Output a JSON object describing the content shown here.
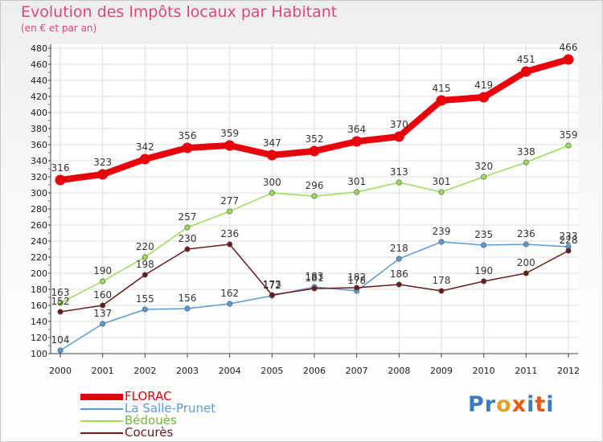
{
  "title": "Evolution des Impôts locaux par Habitant",
  "subtitle": "(en € et par an)",
  "logo_text": "Proxiti",
  "chart_data": {
    "type": "line",
    "title": "Evolution des Impôts locaux par Habitant",
    "subtitle": "(en € et par an)",
    "xlabel": "",
    "ylabel": "",
    "x": [
      "2000",
      "2001",
      "2002",
      "2003",
      "2004",
      "2005",
      "2006",
      "2007",
      "2008",
      "2009",
      "2010",
      "2011",
      "2012"
    ],
    "ylim": [
      100,
      480
    ],
    "yticks": [
      100,
      120,
      140,
      160,
      180,
      200,
      220,
      240,
      260,
      280,
      300,
      320,
      340,
      360,
      380,
      400,
      420,
      440,
      460,
      480
    ],
    "grid": true,
    "legend_position": "bottom-left",
    "series": [
      {
        "name": "FLORAC",
        "color": "#e8000b",
        "values": [
          316,
          323,
          342,
          356,
          359,
          347,
          352,
          364,
          370,
          415,
          419,
          451,
          466
        ]
      },
      {
        "name": "La Salle-Prunet",
        "color": "#5b9bd5",
        "values": [
          104,
          137,
          155,
          156,
          162,
          172,
          183,
          178,
          218,
          239,
          235,
          236,
          233
        ]
      },
      {
        "name": "Bédouès",
        "color": "#99dd55",
        "values": [
          163,
          190,
          220,
          257,
          277,
          300,
          296,
          301,
          313,
          301,
          320,
          338,
          359
        ]
      },
      {
        "name": "Cocurès",
        "color": "#6b1a1a",
        "values": [
          152,
          160,
          198,
          230,
          236,
          173,
          181,
          182,
          186,
          178,
          190,
          200,
          228
        ]
      }
    ]
  }
}
